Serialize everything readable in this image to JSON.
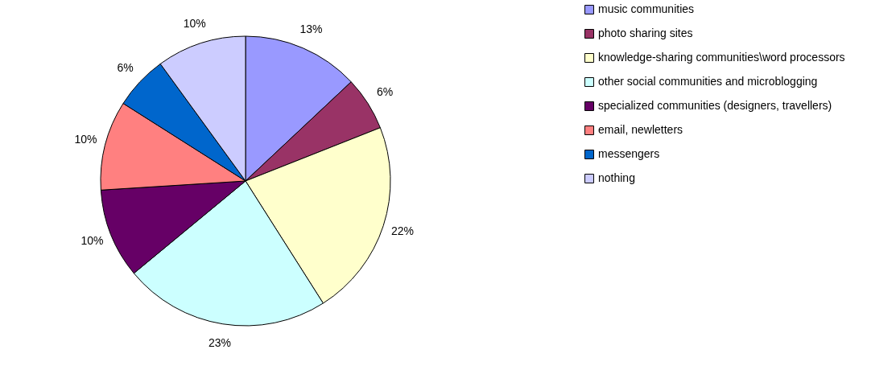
{
  "chart_data": {
    "type": "pie",
    "categories": [
      "music communities",
      "photo sharing sites",
      "knowledge-sharing communities\\word processors",
      "other social communities and microblogging",
      "specialized communities (designers, travellers)",
      "email, newletters",
      "messengers",
      "nothing"
    ],
    "values": [
      13,
      6,
      22,
      23,
      10,
      10,
      6,
      10
    ],
    "colors": [
      "#9999ff",
      "#993366",
      "#ffffcc",
      "#ccffff",
      "#660066",
      "#ff8080",
      "#0066cc",
      "#ccccff"
    ],
    "value_labels": [
      "13%",
      "6%",
      "22%",
      "23%",
      "10%",
      "10%",
      "6%",
      "10%"
    ],
    "legend": "right"
  }
}
